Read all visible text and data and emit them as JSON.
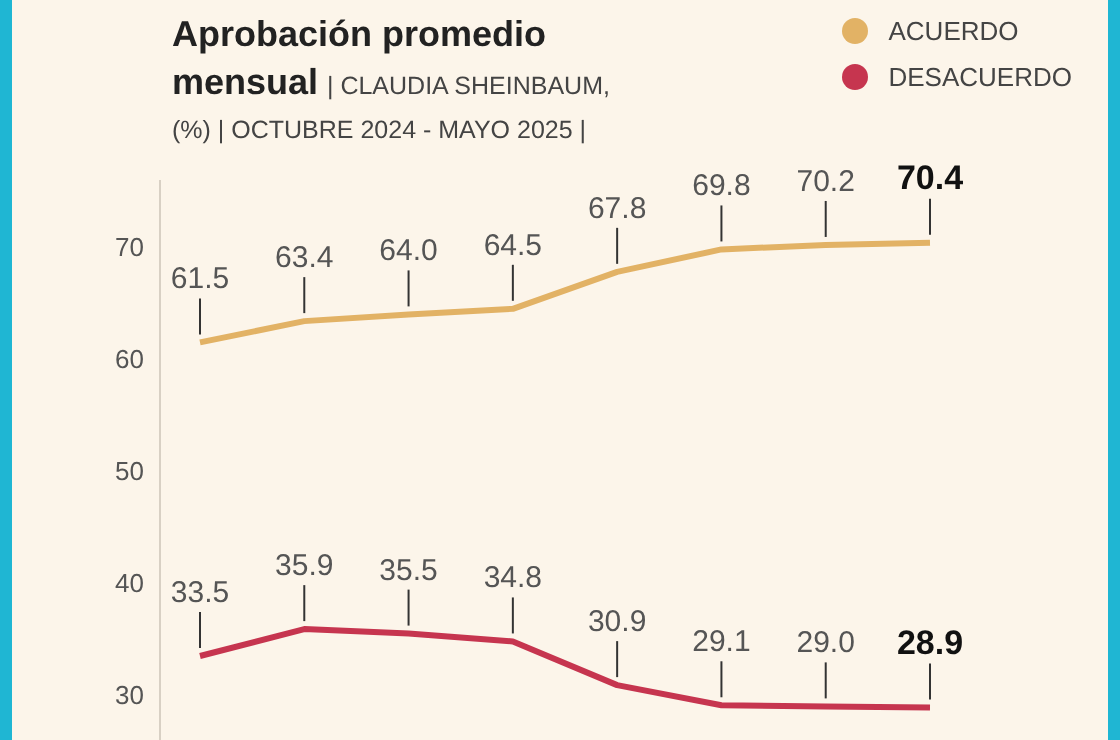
{
  "chart_data": {
    "type": "line",
    "title": "Aprobación promedio mensual",
    "subtitle": "| CLAUDIA SHEINBAUM, (%) | OCTUBRE 2024 - MAYO 2025 |",
    "categories": [
      null,
      null,
      null,
      null,
      null,
      null,
      null,
      null
    ],
    "series": [
      {
        "name": "ACUERDO",
        "color": "#e2b265",
        "values": [
          61.5,
          63.4,
          64.0,
          64.5,
          67.8,
          69.8,
          70.2,
          70.4
        ],
        "value_labels": [
          "61.5",
          "63.4",
          "64.0",
          "64.5",
          "67.8",
          "69.8",
          "70.2",
          "70.4"
        ]
      },
      {
        "name": "DESACUERDO",
        "color": "#c6354f",
        "values": [
          33.5,
          35.9,
          35.5,
          34.8,
          30.9,
          29.1,
          29.0,
          28.9
        ],
        "value_labels": [
          "33.5",
          "35.9",
          "35.5",
          "34.8",
          "30.9",
          "29.1",
          "29.0",
          "28.9"
        ]
      }
    ],
    "ylim": [
      26,
      76
    ],
    "yticks": [
      30,
      40,
      50,
      60,
      70
    ],
    "tick_labels": "y",
    "legend": "top right",
    "marker": "none",
    "line_style": "solid"
  }
}
